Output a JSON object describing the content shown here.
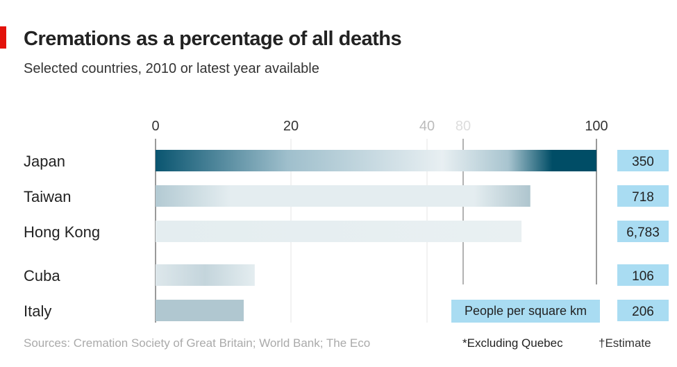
{
  "chart_data": {
    "type": "bar",
    "title": "Cremations as a percentage of all deaths",
    "subtitle": "Selected countries, 2010 or latest year available",
    "categories": [
      "Japan",
      "Taiwan",
      "Hong Kong",
      "Cuba",
      "Italy"
    ],
    "values": [
      100,
      85,
      83,
      22.5,
      20
    ],
    "xlim": [
      0,
      100
    ],
    "tick_labels": [
      "0",
      "20",
      "40",
      "80",
      "100"
    ],
    "density_label": "People per square km",
    "density": [
      "350",
      "718",
      "6,783",
      "106",
      "206"
    ],
    "source": "Sources: Cremation Society of Great Britain; World Bank; The Eco",
    "footnote1": "*Excluding Quebec",
    "footnote2": "†Estimate",
    "colors": {
      "dark": "#004d66",
      "light": "#e4edf0",
      "box": "#a9dcf2"
    }
  }
}
